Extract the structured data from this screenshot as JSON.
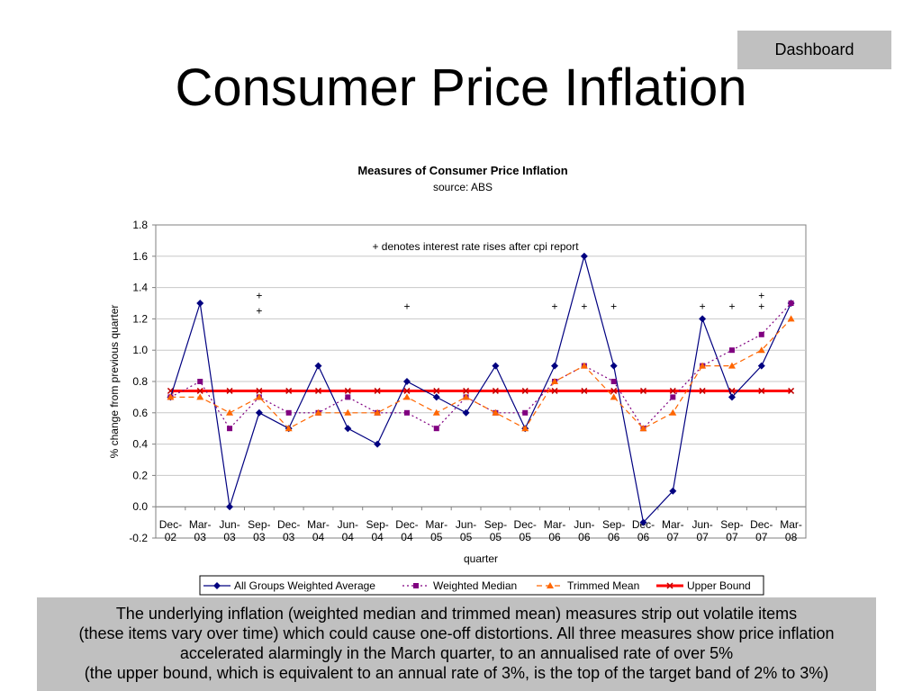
{
  "header": {
    "dashboard_label": "Dashboard",
    "title": "Consumer Price Inflation"
  },
  "chart_data": {
    "type": "line",
    "title": "Measures of Consumer Price Inflation",
    "subtitle": "source: ABS",
    "xlabel": "quarter",
    "ylabel": "% change from previous quarter",
    "ylim": [
      -0.2,
      1.8
    ],
    "yticks": [
      "1.8",
      "1.6",
      "1.4",
      "1.2",
      "1.0",
      "0.8",
      "0.6",
      "0.4",
      "0.2",
      "0.0",
      "-0.2"
    ],
    "grid": true,
    "legend_position": "bottom",
    "annotation": "+ denotes interest rate rises after cpi report",
    "categories": [
      "Dec-02",
      "Mar-03",
      "Jun-03",
      "Sep-03",
      "Dec-03",
      "Mar-04",
      "Jun-04",
      "Sep-04",
      "Dec-04",
      "Mar-05",
      "Jun-05",
      "Sep-05",
      "Dec-05",
      "Mar-06",
      "Jun-06",
      "Sep-06",
      "Dec-06",
      "Mar-07",
      "Jun-07",
      "Sep-07",
      "Dec-07",
      "Mar-08"
    ],
    "series": [
      {
        "name": "All Groups Weighted Average",
        "color": "#000080",
        "marker": "diamond",
        "dash": "solid",
        "values": [
          0.7,
          1.3,
          0.0,
          0.6,
          0.5,
          0.9,
          0.5,
          0.4,
          0.8,
          0.7,
          0.6,
          0.9,
          0.5,
          0.9,
          1.6,
          0.9,
          -0.1,
          0.1,
          1.2,
          0.7,
          0.9,
          1.3
        ]
      },
      {
        "name": "Weighted Median",
        "color": "#800080",
        "marker": "square",
        "dash": "dot",
        "values": [
          0.7,
          0.8,
          0.5,
          0.7,
          0.6,
          0.6,
          0.7,
          0.6,
          0.6,
          0.5,
          0.7,
          0.6,
          0.6,
          0.8,
          0.9,
          0.8,
          0.5,
          0.7,
          0.9,
          1.0,
          1.1,
          1.3
        ]
      },
      {
        "name": "Trimmed Mean",
        "color": "#ff6600",
        "marker": "triangle",
        "dash": "dash",
        "values": [
          0.7,
          0.7,
          0.6,
          0.7,
          0.5,
          0.6,
          0.6,
          0.6,
          0.7,
          0.6,
          0.7,
          0.6,
          0.5,
          0.8,
          0.9,
          0.7,
          0.5,
          0.6,
          0.9,
          0.9,
          1.0,
          1.2
        ]
      },
      {
        "name": "Upper Bound",
        "color": "#ff0000",
        "marker": "x",
        "dash": "solid",
        "values": [
          0.74,
          0.74,
          0.74,
          0.74,
          0.74,
          0.74,
          0.74,
          0.74,
          0.74,
          0.74,
          0.74,
          0.74,
          0.74,
          0.74,
          0.74,
          0.74,
          0.74,
          0.74,
          0.74,
          0.74,
          0.74,
          0.74
        ]
      }
    ],
    "rate_rise_markers": [
      {
        "category": "Sep-03",
        "y": 1.35
      },
      {
        "category": "Sep-03",
        "y": 1.25
      },
      {
        "category": "Dec-04",
        "y": 1.28
      },
      {
        "category": "Mar-06",
        "y": 1.28
      },
      {
        "category": "Jun-06",
        "y": 1.28
      },
      {
        "category": "Sep-06",
        "y": 1.28
      },
      {
        "category": "Jun-07",
        "y": 1.28
      },
      {
        "category": "Sep-07",
        "y": 1.28
      },
      {
        "category": "Dec-07",
        "y": 1.35
      },
      {
        "category": "Dec-07",
        "y": 1.28
      }
    ],
    "rate_rise_symbol": "+"
  },
  "caption": {
    "lines": [
      "The underlying inflation (weighted median and trimmed mean) measures strip out volatile items",
      "(these items vary over time) which could cause one-off distortions.  All three measures show price inflation",
      "accelerated alarmingly in the March quarter, to an annualised rate of over 5%",
      "(the upper bound, which is equivalent to an annual rate of 3%, is the top of the target band of 2% to 3%)"
    ]
  }
}
